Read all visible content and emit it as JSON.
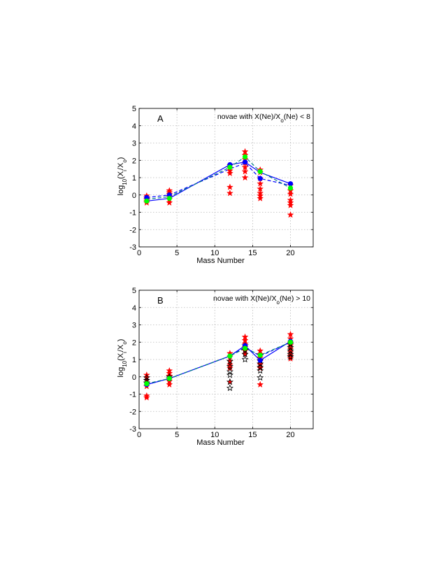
{
  "chart_data": [
    {
      "type": "scatter",
      "panel": "A",
      "title": "A",
      "annotation": {
        "pre": "novae with X(Ne)/X",
        "sub": "o",
        "post": "(Ne) < 8"
      },
      "xlabel": "Mass Number",
      "ylabel": {
        "base": "log",
        "base_sub": "10",
        "open": "(X",
        "num_sub": "i",
        "mid": "/X",
        "den_sub": "o",
        "close": ")"
      },
      "xlim": [
        0,
        23
      ],
      "ylim": [
        -3,
        5
      ],
      "xticks": [
        0,
        5,
        10,
        15,
        20
      ],
      "yticks": [
        -3,
        -2,
        -1,
        0,
        1,
        2,
        3,
        4,
        5
      ],
      "grid": true,
      "colors": {
        "red": "#ff0000",
        "black": "#000000",
        "blue": "#0000ff",
        "green": "#00ff00",
        "teal": "#008080"
      },
      "scatter_red": [
        {
          "x": 1,
          "ys": [
            -0.05,
            -0.15,
            -0.25,
            -0.35,
            -0.45
          ]
        },
        {
          "x": 4,
          "ys": [
            0.25,
            0.15,
            0.05,
            -0.1,
            -0.25,
            -0.45
          ]
        },
        {
          "x": 12,
          "ys": [
            1.7,
            1.55,
            1.4,
            1.25,
            0.45,
            0.1
          ]
        },
        {
          "x": 14,
          "ys": [
            2.5,
            2.3,
            2.05,
            1.85,
            1.6,
            1.35,
            1.0
          ]
        },
        {
          "x": 16,
          "ys": [
            1.45,
            1.3,
            0.95,
            0.65,
            0.35,
            0.1,
            -0.05,
            -0.2
          ]
        },
        {
          "x": 20,
          "ys": [
            0.55,
            0.25,
            0.05,
            -0.3,
            -0.45,
            -0.6,
            -1.15
          ]
        }
      ],
      "scatter_black": [],
      "series": [
        {
          "name": "blue-solid",
          "color": "#0000ff",
          "dash": "solid",
          "x": [
            1,
            4,
            12,
            14,
            16,
            20
          ],
          "y": [
            -0.35,
            -0.2,
            1.75,
            1.9,
            1.3,
            0.65
          ]
        },
        {
          "name": "blue-dashed",
          "color": "#0000ff",
          "dash": "dashed",
          "x": [
            1,
            4,
            12,
            14,
            16,
            20
          ],
          "y": [
            -0.15,
            0.0,
            1.5,
            1.85,
            0.95,
            0.55
          ]
        },
        {
          "name": "teal-dashed",
          "color": "#008080",
          "dash": "dashed",
          "x": [
            1,
            4,
            12,
            14,
            16,
            20
          ],
          "y": [
            -0.25,
            -0.1,
            1.6,
            2.2,
            1.35,
            0.4
          ]
        }
      ],
      "markers_blue": [
        {
          "x": 1,
          "y": -0.15
        },
        {
          "x": 4,
          "y": 0.0
        },
        {
          "x": 12,
          "y": 1.75
        },
        {
          "x": 14,
          "y": 1.9
        },
        {
          "x": 16,
          "y": 0.95
        },
        {
          "x": 20,
          "y": 0.65
        }
      ],
      "markers_green": [
        {
          "x": 1,
          "y": -0.35
        },
        {
          "x": 4,
          "y": -0.2
        },
        {
          "x": 12,
          "y": 1.6
        },
        {
          "x": 14,
          "y": 2.2
        },
        {
          "x": 16,
          "y": 1.35
        },
        {
          "x": 20,
          "y": 0.4
        }
      ]
    },
    {
      "type": "scatter",
      "panel": "B",
      "title": "B",
      "annotation": {
        "pre": "novae with X(Ne)/X",
        "sub": "o",
        "post": "(Ne) > 10"
      },
      "xlabel": "Mass Number",
      "ylabel": {
        "base": "log",
        "base_sub": "10",
        "open": "(X",
        "num_sub": "i",
        "mid": "/X",
        "den_sub": "o",
        "close": ")"
      },
      "xlim": [
        0,
        23
      ],
      "ylim": [
        -3,
        5
      ],
      "xticks": [
        0,
        5,
        10,
        15,
        20
      ],
      "yticks": [
        -3,
        -2,
        -1,
        0,
        1,
        2,
        3,
        4,
        5
      ],
      "grid": true,
      "colors": {
        "red": "#ff0000",
        "black": "#000000",
        "blue": "#0000ff",
        "green": "#00ff00",
        "teal": "#008080"
      },
      "scatter_red": [
        {
          "x": 1,
          "ys": [
            0.1,
            -0.05,
            -0.2,
            -0.35,
            -0.55,
            -1.1,
            -1.2
          ]
        },
        {
          "x": 4,
          "ys": [
            0.35,
            0.2,
            0.05,
            -0.1,
            -0.25,
            -0.45
          ]
        },
        {
          "x": 12,
          "ys": [
            1.35,
            1.15,
            0.9,
            0.7,
            0.5,
            -0.3
          ]
        },
        {
          "x": 14,
          "ys": [
            2.3,
            2.1,
            1.9,
            1.7,
            1.5,
            1.3
          ]
        },
        {
          "x": 16,
          "ys": [
            1.5,
            1.3,
            1.1,
            0.9,
            0.7,
            0.5,
            -0.45
          ]
        },
        {
          "x": 20,
          "ys": [
            2.45,
            2.2,
            2.0,
            1.8,
            1.6,
            1.4,
            1.2,
            1.05
          ]
        }
      ],
      "scatter_black": [
        {
          "x": 1,
          "ys": [
            -0.05,
            -0.2,
            -0.35
          ]
        },
        {
          "x": 4,
          "ys": [
            0.0,
            -0.1
          ]
        },
        {
          "x": 12,
          "ys": [
            0.9,
            0.6,
            0.3,
            0.1,
            -0.3,
            -0.65
          ]
        },
        {
          "x": 14,
          "ys": [
            1.8,
            1.55,
            1.3,
            1.0
          ]
        },
        {
          "x": 16,
          "ys": [
            0.95,
            0.75,
            0.55,
            0.35,
            -0.05
          ]
        },
        {
          "x": 20,
          "ys": [
            1.9,
            1.7,
            1.5,
            1.3,
            1.15
          ]
        }
      ],
      "series": [
        {
          "name": "blue-solid",
          "color": "#0000ff",
          "dash": "solid",
          "x": [
            1,
            4,
            12,
            14,
            16,
            20
          ],
          "y": [
            -0.45,
            -0.1,
            1.2,
            1.8,
            0.95,
            2.05
          ]
        },
        {
          "name": "blue-dashed",
          "color": "#0000ff",
          "dash": "dashed",
          "x": [
            1,
            4,
            12,
            14,
            16,
            20
          ],
          "y": [
            -0.45,
            -0.1,
            1.2,
            1.7,
            1.2,
            2.0
          ]
        },
        {
          "name": "teal-dashed",
          "color": "#008080",
          "dash": "dashed",
          "x": [
            1,
            4,
            12,
            14,
            16,
            20
          ],
          "y": [
            -0.4,
            -0.1,
            1.2,
            1.65,
            1.25,
            2.0
          ]
        }
      ],
      "markers_blue": [
        {
          "x": 1,
          "y": -0.45
        },
        {
          "x": 4,
          "y": -0.1
        },
        {
          "x": 12,
          "y": 1.2
        },
        {
          "x": 14,
          "y": 1.8
        },
        {
          "x": 16,
          "y": 0.95
        },
        {
          "x": 20,
          "y": 2.05
        }
      ],
      "markers_green": [
        {
          "x": 1,
          "y": -0.4
        },
        {
          "x": 4,
          "y": -0.1
        },
        {
          "x": 12,
          "y": 1.2
        },
        {
          "x": 14,
          "y": 1.65
        },
        {
          "x": 16,
          "y": 1.25
        },
        {
          "x": 20,
          "y": 2.0
        }
      ]
    }
  ]
}
